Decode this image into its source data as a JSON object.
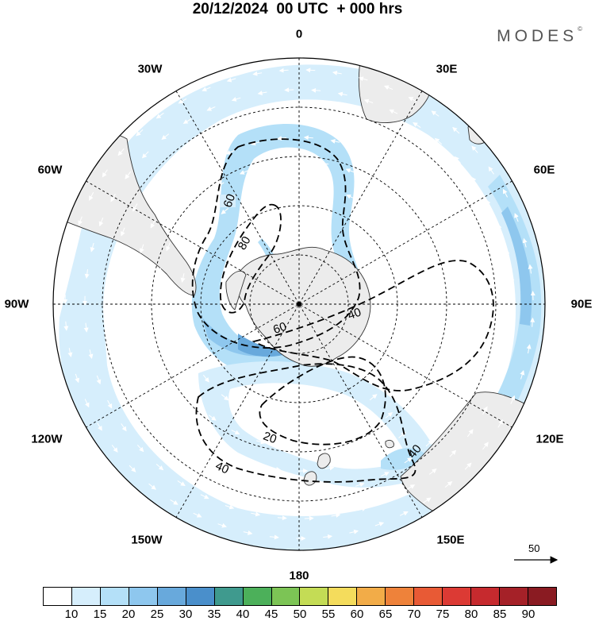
{
  "title": "20/12/2024  00 UTC  + 000 hrs",
  "brand": "MODES",
  "brand_mark": "©",
  "longitude_labels": {
    "n0": "0",
    "e30": "30E",
    "e60": "60E",
    "e90": "90E",
    "e120": "120E",
    "e150": "150E",
    "s180": "180",
    "w150": "150W",
    "w120": "120W",
    "w90": "90W",
    "w60": "60W",
    "w30": "30W"
  },
  "contour_labels": [
    "60",
    "80",
    "60",
    "40",
    "20",
    "40",
    "40"
  ],
  "reference_vector": {
    "value": "50"
  },
  "colorbar": {
    "ticks": [
      "10",
      "15",
      "20",
      "25",
      "30",
      "35",
      "40",
      "45",
      "50",
      "55",
      "60",
      "65",
      "70",
      "75",
      "80",
      "85",
      "90"
    ],
    "colors": [
      "#ffffff",
      "#d6eefc",
      "#b4e0f8",
      "#8ec7ee",
      "#68a9dc",
      "#4a8fcb",
      "#3f9a8e",
      "#4cb05a",
      "#7cc455",
      "#c4dc55",
      "#f4dc5c",
      "#f2ac48",
      "#ee823a",
      "#e85a35",
      "#dc3a34",
      "#c62a2e",
      "#a52128",
      "#8a1b22"
    ]
  },
  "colors": {
    "land": "#ececec",
    "shade_light": "#d6eefc",
    "shade_mid": "#b4e0f8",
    "shade_strong": "#8ec7ee"
  }
}
